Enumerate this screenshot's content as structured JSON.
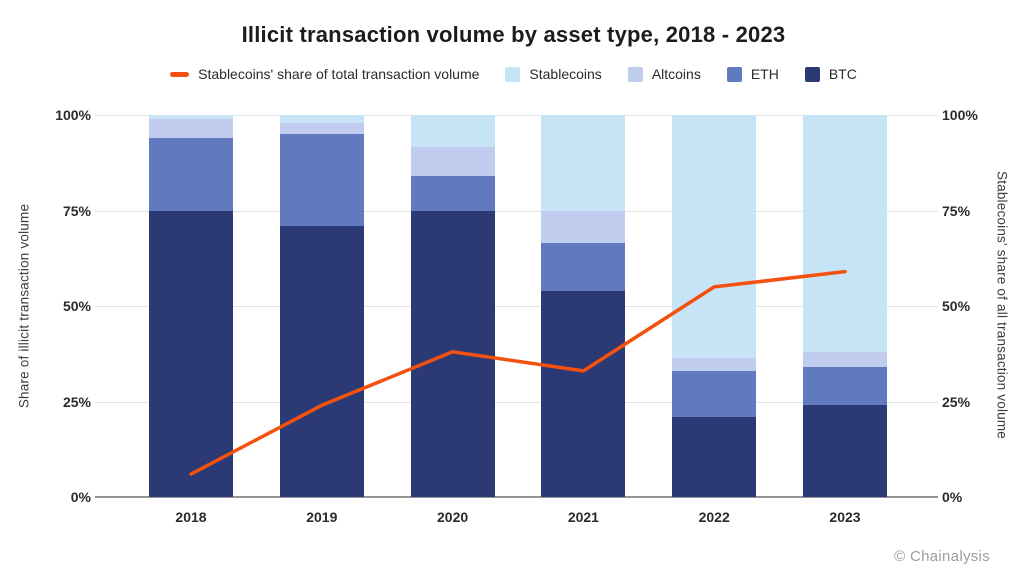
{
  "title": "Illicit transaction volume by asset type, 2018 - 2023",
  "footer": "© Chainalysis",
  "colors": {
    "btc": "#2b3a74",
    "eth": "#6079bf",
    "altcoins": "#c0cdee",
    "stablecoins": "#c6e4f6",
    "line": "#f4510e",
    "gridline": "#e2e2e2",
    "axis": "#949494"
  },
  "legend": [
    {
      "key": "stablecoins-share-line",
      "label": "Stablecoins' share of total transaction volume",
      "type": "line",
      "color": "#f4510e"
    },
    {
      "key": "stablecoins",
      "label": "Stablecoins",
      "type": "square",
      "color": "#c6e4f6"
    },
    {
      "key": "altcoins",
      "label": "Altcoins",
      "type": "square",
      "color": "#c0cdee"
    },
    {
      "key": "eth",
      "label": "ETH",
      "type": "square",
      "color": "#6079bf"
    },
    {
      "key": "btc",
      "label": "BTC",
      "type": "square",
      "color": "#2b3a74"
    }
  ],
  "axes": {
    "left_title": "Share of illicit transaction volume",
    "right_title": "Stablecoins' share of all transaction volume",
    "y_ticks": [
      "0%",
      "25%",
      "50%",
      "75%",
      "100%"
    ],
    "y_tick_values": [
      0,
      25,
      50,
      75,
      100
    ]
  },
  "chart_data": {
    "type": "bar",
    "subtype": "stacked-percent-with-line-overlay",
    "title": "Illicit transaction volume by asset type, 2018 - 2023",
    "categories": [
      "2018",
      "2019",
      "2020",
      "2021",
      "2022",
      "2023"
    ],
    "stack_order_bottom_to_top": [
      "BTC",
      "ETH",
      "Altcoins",
      "Stablecoins"
    ],
    "series": [
      {
        "name": "BTC",
        "color": "#2b3a74",
        "values": [
          75,
          71,
          75,
          54,
          21,
          24
        ]
      },
      {
        "name": "ETH",
        "color": "#6079bf",
        "values": [
          19,
          24,
          9,
          12.5,
          12,
          10
        ]
      },
      {
        "name": "Altcoins",
        "color": "#c0cdee",
        "values": [
          5,
          3,
          7.5,
          8.5,
          3.5,
          4
        ]
      },
      {
        "name": "Stablecoins",
        "color": "#c6e4f6",
        "values": [
          1,
          2,
          8.5,
          25,
          63.5,
          62
        ]
      }
    ],
    "line_series": {
      "name": "Stablecoins' share of total transaction volume",
      "color": "#f4510e",
      "values": [
        6,
        24,
        38,
        33,
        55,
        59
      ]
    },
    "xlabel": "",
    "ylabel_left": "Share of illicit transaction volume",
    "ylabel_right": "Stablecoins' share of all transaction volume",
    "ylim": [
      0,
      100
    ],
    "y_tick_labels": [
      "0%",
      "25%",
      "50%",
      "75%",
      "100%"
    ],
    "grid": true,
    "legend_position": "top"
  }
}
